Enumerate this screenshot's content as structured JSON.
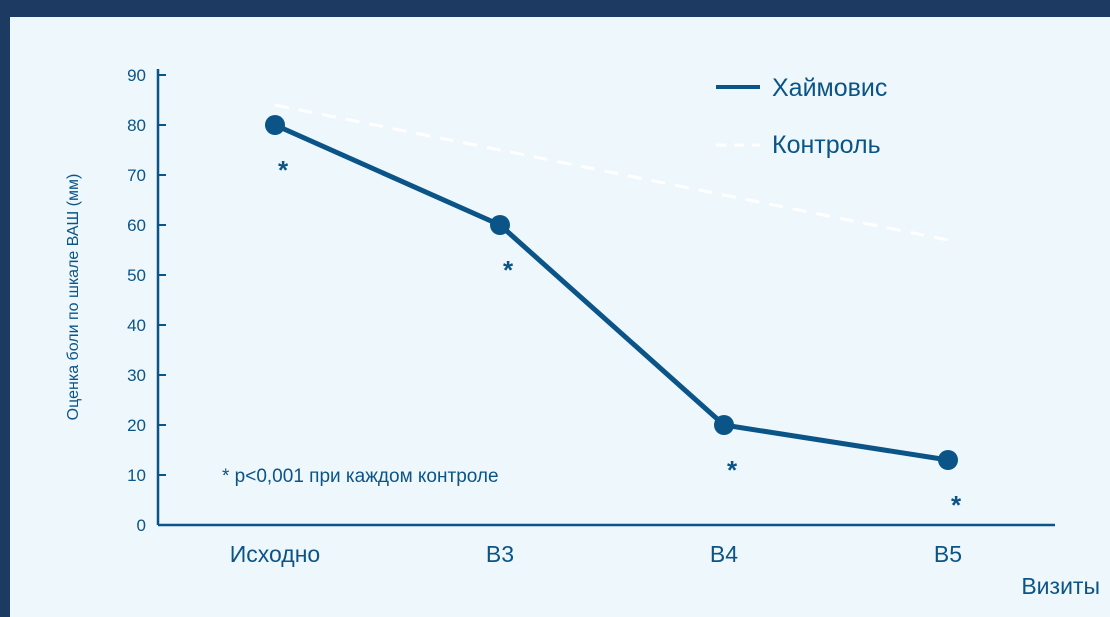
{
  "chart_data": {
    "type": "line",
    "categories": [
      "Исходно",
      "В3",
      "В4",
      "В5"
    ],
    "series": [
      {
        "name": "Хаймовис",
        "values": [
          80,
          60,
          20,
          13
        ],
        "style": "solid",
        "color": "#0b5487"
      },
      {
        "name": "Контроль",
        "values": [
          84,
          75,
          66,
          57
        ],
        "style": "dashed",
        "color": "#ffffff"
      }
    ],
    "ylabel": "Оценка боли по шкале ВАШ (мм)",
    "xlabel": "Визиты",
    "ylim": [
      0,
      90
    ],
    "yticks": [
      "0",
      "10",
      "20",
      "30",
      "40",
      "50",
      "60",
      "70",
      "80",
      "90"
    ],
    "significance_marker": "*",
    "annotation": "* p<0,001 при каждом контроле",
    "legend_position": "top-right",
    "grid": false
  },
  "colors": {
    "frame": "#1d3a63",
    "background": "#eef7fc",
    "accent": "#0b5487"
  }
}
